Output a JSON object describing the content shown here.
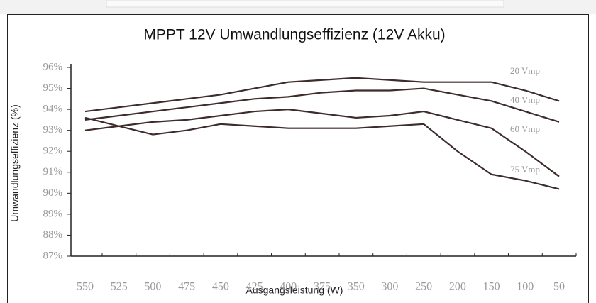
{
  "chart_data": {
    "type": "line",
    "title": "MPPT 12V Umwandlungseffizienz (12V Akku)",
    "x_label": "Ausgangsleistung (W)",
    "y_label": "Umwandlungseffizienz (%)",
    "categories": [
      "550",
      "525",
      "500",
      "475",
      "450",
      "425",
      "400",
      "375",
      "350",
      "300",
      "250",
      "200",
      "150",
      "100",
      "50"
    ],
    "series": [
      {
        "name": "20 Vmp",
        "color": "#3e2c2c",
        "values": [
          93.9,
          94.1,
          94.3,
          94.5,
          94.7,
          95.0,
          95.3,
          95.4,
          95.5,
          95.4,
          95.3,
          95.3,
          95.3,
          94.9,
          94.4
        ]
      },
      {
        "name": "40 Vmp",
        "color": "#3e2c2c",
        "values": [
          93.5,
          93.7,
          93.9,
          94.1,
          94.3,
          94.5,
          94.6,
          94.8,
          94.9,
          94.9,
          95.0,
          94.7,
          94.4,
          93.9,
          93.4
        ]
      },
      {
        "name": "60 Vmp",
        "color": "#3e2c2c",
        "values": [
          93.0,
          93.2,
          93.4,
          93.5,
          93.7,
          93.9,
          94.0,
          93.8,
          93.6,
          93.7,
          93.9,
          93.5,
          93.1,
          92.0,
          90.8
        ]
      },
      {
        "name": "75 Vmp",
        "color": "#3e2c2c",
        "values": [
          93.6,
          93.2,
          92.8,
          93.0,
          93.3,
          93.2,
          93.1,
          93.1,
          93.1,
          93.2,
          93.3,
          92.0,
          90.9,
          90.6,
          90.2
        ]
      }
    ],
    "ylim": [
      87,
      96
    ],
    "yticks": [
      {
        "value": 96,
        "label": "96%"
      },
      {
        "value": 95,
        "label": "95%"
      },
      {
        "value": 94,
        "label": "94%"
      },
      {
        "value": 93,
        "label": "93%"
      },
      {
        "value": 92,
        "label": "92%"
      },
      {
        "value": 91,
        "label": "91%"
      },
      {
        "value": 90,
        "label": "90%"
      },
      {
        "value": 89,
        "label": "89%"
      },
      {
        "value": 88,
        "label": "88%"
      },
      {
        "value": 87,
        "label": "87%"
      }
    ]
  }
}
